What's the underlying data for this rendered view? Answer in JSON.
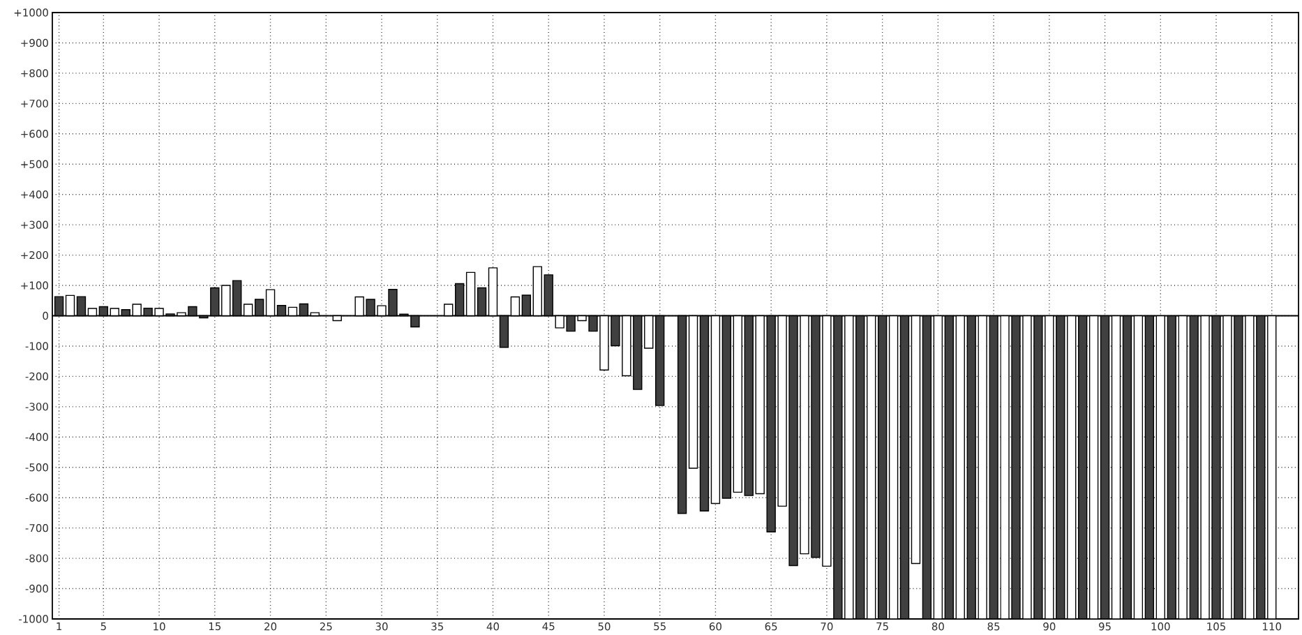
{
  "chart_data": {
    "type": "bar",
    "categories": [
      "1",
      null,
      null,
      null,
      "5",
      null,
      null,
      null,
      null,
      "10",
      null,
      null,
      null,
      null,
      "15",
      null,
      null,
      null,
      null,
      "20",
      null,
      null,
      null,
      null,
      "25",
      null,
      null,
      null,
      null,
      "30",
      null,
      null,
      null,
      null,
      "35",
      null,
      null,
      null,
      null,
      "40",
      null,
      null,
      null,
      null,
      "45",
      null,
      null,
      null,
      null,
      "50",
      null,
      null,
      null,
      null,
      "55",
      null,
      null,
      null,
      null,
      "60",
      null,
      null,
      null,
      null,
      "65",
      null,
      null,
      null,
      null,
      "70",
      null,
      null,
      null,
      null,
      "75",
      null,
      null,
      null,
      null,
      "80",
      null,
      null,
      null,
      null,
      "85",
      null,
      null,
      null,
      null,
      "90",
      null,
      null,
      null,
      null,
      "95",
      null,
      null,
      null,
      null,
      "100",
      null,
      null,
      null,
      null,
      "105",
      null,
      null,
      null,
      null,
      "110"
    ],
    "values": [
      63,
      67,
      63,
      24,
      30,
      24,
      20,
      38,
      25,
      24,
      6,
      10,
      30,
      -7,
      92,
      100,
      116,
      38,
      54,
      86,
      34,
      28,
      39,
      10,
      null,
      -16,
      null,
      62,
      54,
      33,
      87,
      5,
      -37,
      null,
      null,
      38,
      106,
      143,
      92,
      158,
      -104,
      62,
      68,
      162,
      135,
      -40,
      -51,
      -16,
      -51,
      -179,
      -99,
      -198,
      -243,
      -107,
      -296,
      null,
      -652,
      -503,
      -644,
      -619,
      -602,
      -582,
      -593,
      -587,
      -713,
      -628,
      -824,
      -785,
      -797,
      -826,
      -1000,
      -1000,
      -1000,
      -1000,
      -1000,
      -1000,
      -1000,
      -817,
      -1000,
      -1000,
      -1000,
      -1000,
      -1000,
      -1000,
      -1000,
      -1000,
      -1000,
      -1000,
      -1000,
      -1000,
      -1000,
      -1000,
      -1000,
      -1000,
      -1000,
      -1000,
      -1000,
      -1000,
      -1000,
      -1000,
      -1000,
      -1000,
      -1000,
      -1000,
      -1000,
      -1000,
      -1000,
      -1000,
      -1000,
      -1000
    ],
    "colors": [
      "#404040",
      "#ffffff",
      "#404040",
      "#ffffff",
      "#404040",
      "#ffffff",
      "#404040",
      "#ffffff",
      "#404040",
      "#ffffff",
      "#404040",
      "#ffffff",
      "#404040",
      "#404040",
      "#404040",
      "#ffffff",
      "#404040",
      "#ffffff",
      "#404040",
      "#ffffff",
      "#404040",
      "#ffffff",
      "#404040",
      "#ffffff",
      "#404040",
      "#ffffff",
      "#404040",
      "#ffffff",
      "#404040",
      "#ffffff",
      "#404040",
      "#404040",
      "#404040",
      "#ffffff",
      "#404040",
      "#ffffff",
      "#404040",
      "#ffffff",
      "#404040",
      "#ffffff",
      "#404040",
      "#ffffff",
      "#404040",
      "#ffffff",
      "#404040",
      "#ffffff",
      "#404040",
      "#ffffff",
      "#404040",
      "#ffffff",
      "#404040",
      "#ffffff",
      "#404040",
      "#ffffff",
      "#404040",
      "#ffffff",
      "#404040",
      "#ffffff",
      "#404040",
      "#ffffff",
      "#404040",
      "#ffffff",
      "#404040",
      "#ffffff",
      "#404040",
      "#ffffff",
      "#404040",
      "#ffffff",
      "#404040",
      "#ffffff",
      "#404040",
      "#ffffff",
      "#404040",
      "#ffffff",
      "#404040",
      "#ffffff",
      "#404040",
      "#ffffff",
      "#404040",
      "#ffffff",
      "#404040",
      "#ffffff",
      "#404040",
      "#ffffff",
      "#404040",
      "#ffffff",
      "#404040",
      "#ffffff",
      "#404040",
      "#ffffff",
      "#404040",
      "#ffffff",
      "#404040",
      "#ffffff",
      "#404040",
      "#ffffff",
      "#404040",
      "#ffffff",
      "#404040",
      "#ffffff",
      "#404040",
      "#ffffff",
      "#404040",
      "#ffffff",
      "#404040",
      "#ffffff",
      "#404040",
      "#ffffff",
      "#404040",
      "#ffffff"
    ],
    "ylim": [
      -1000,
      1000
    ],
    "yticks": [
      {
        "value": -1000,
        "label": "-1000"
      },
      {
        "value": -900,
        "label": "-900"
      },
      {
        "value": -800,
        "label": "-800"
      },
      {
        "value": -700,
        "label": "-700"
      },
      {
        "value": -600,
        "label": "-600"
      },
      {
        "value": -500,
        "label": "-500"
      },
      {
        "value": -400,
        "label": "-400"
      },
      {
        "value": -300,
        "label": "-300"
      },
      {
        "value": -200,
        "label": "-200"
      },
      {
        "value": -100,
        "label": "-100"
      },
      0,
      {
        "value": 100,
        "label": "+100"
      },
      {
        "value": 200,
        "label": "+200"
      },
      {
        "value": 300,
        "label": "+300"
      },
      {
        "value": 400,
        "label": "+400"
      },
      {
        "value": 500,
        "label": "+500"
      },
      {
        "value": 600,
        "label": "+600"
      },
      {
        "value": 700,
        "label": "+700"
      },
      {
        "value": 800,
        "label": "+800"
      },
      {
        "value": 900,
        "label": "+900"
      },
      {
        "value": 1000,
        "label": "+1000"
      }
    ],
    "grid": true
  }
}
